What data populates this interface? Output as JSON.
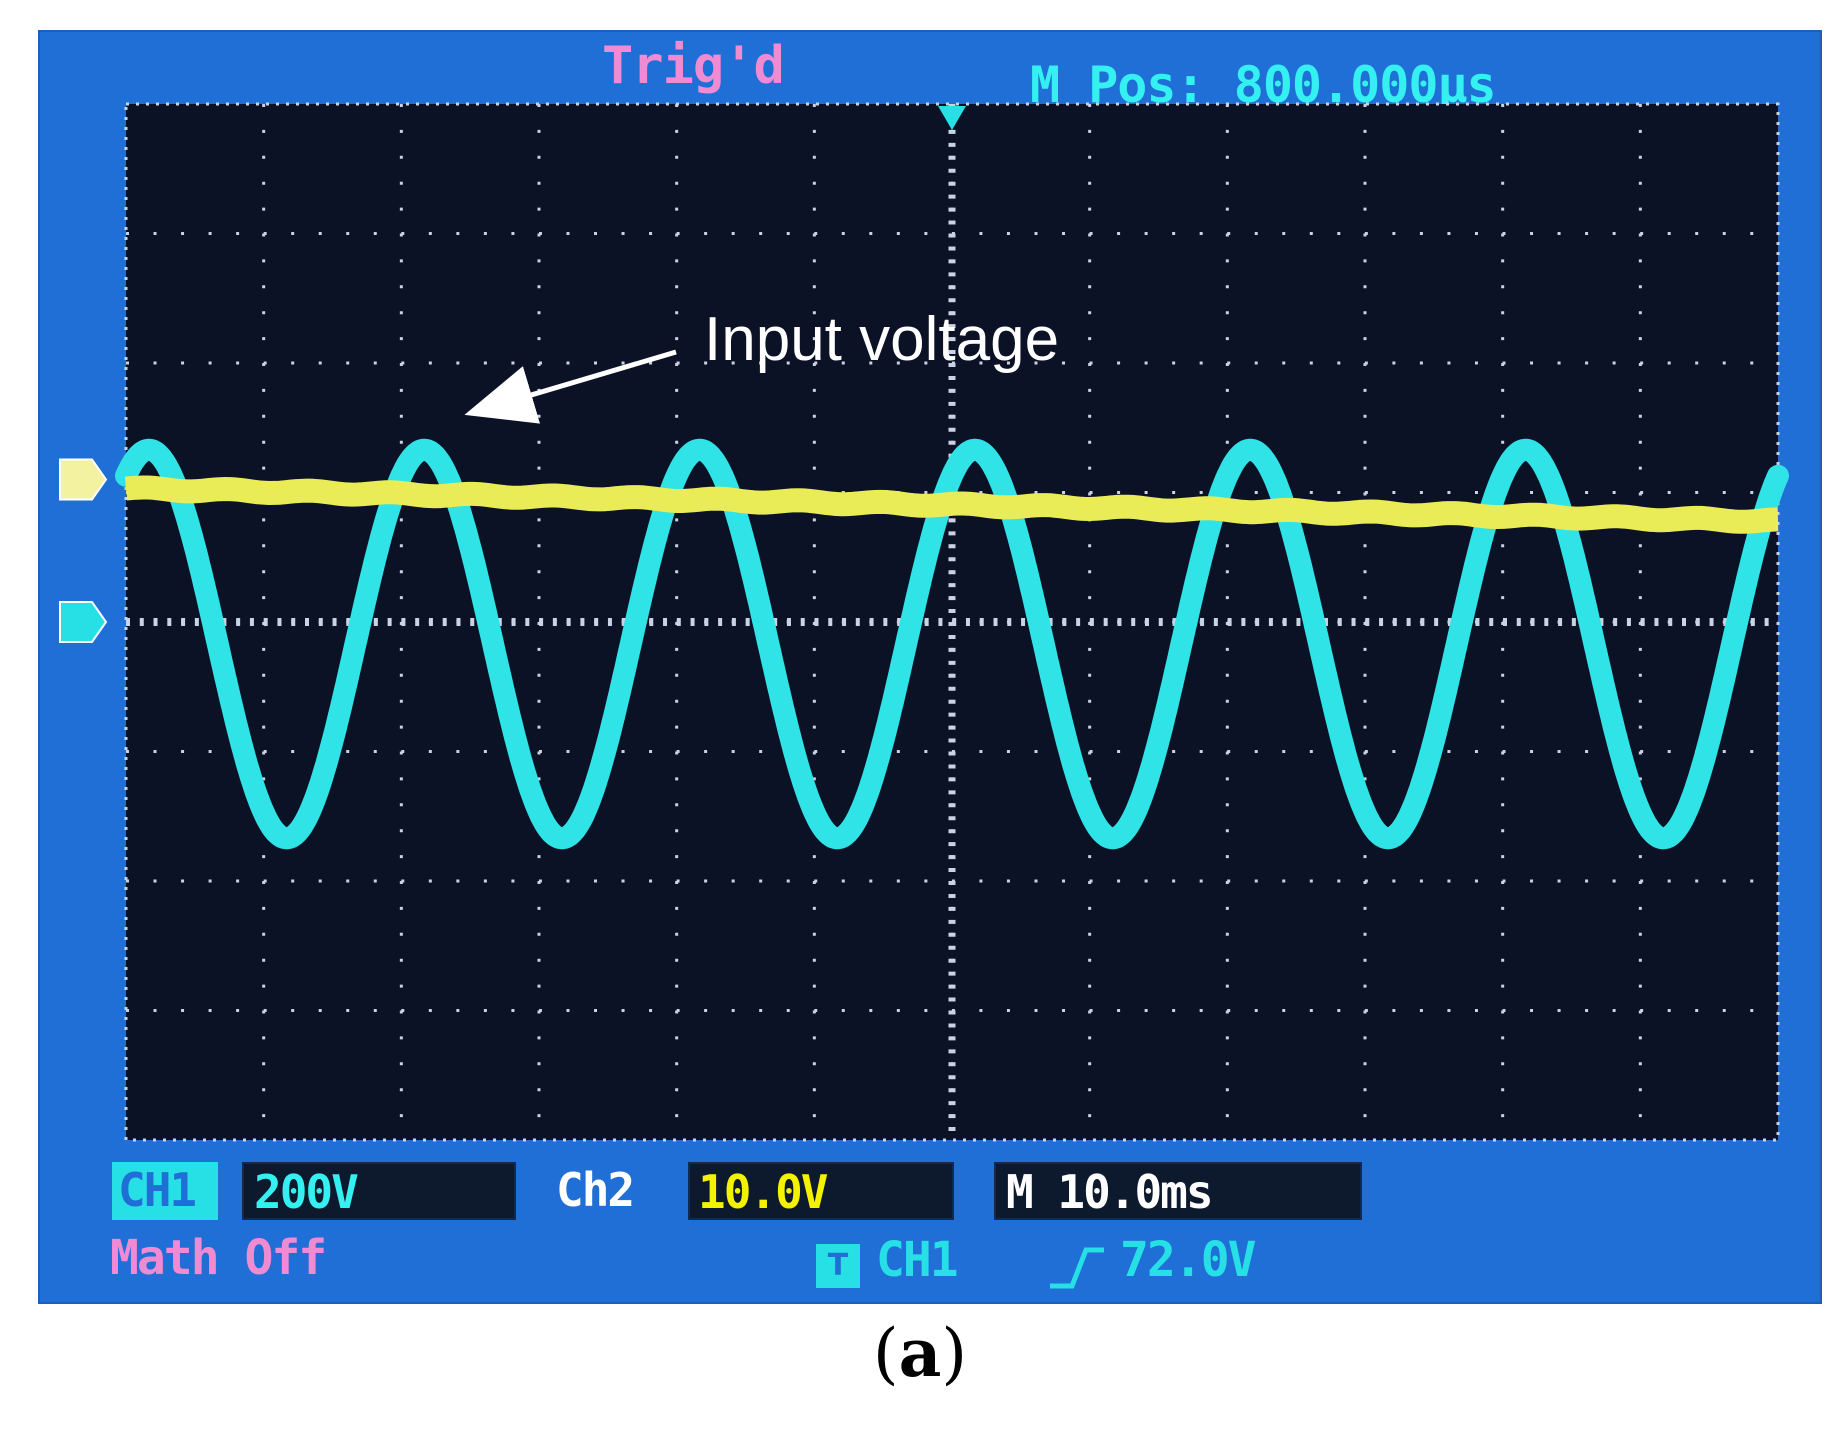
{
  "header": {
    "trigger_status": "Trig'd",
    "horizontal_position": "M Pos: 800.000μs"
  },
  "annotation": {
    "label": "Input voltage"
  },
  "channels": {
    "ch1": {
      "label": "CH1",
      "scale": "200V",
      "color": "#34f0f0"
    },
    "ch2": {
      "label": "Ch2",
      "scale": "10.0V",
      "color": "#f5f200"
    }
  },
  "timebase": {
    "scale": "M 10.0ms"
  },
  "math": {
    "status": "Math Off"
  },
  "trigger": {
    "icon": "T",
    "source": "CH1",
    "slope": "rising",
    "level": "72.0V"
  },
  "caption": {
    "open": "(",
    "letter": "a",
    "close": ")"
  },
  "colors": {
    "bezel": "#1f6fd6",
    "screen": "#0c1226",
    "grid": "#c8d4e4",
    "ch1_trace": "#2fe3e6",
    "ch2_trace": "#e9ec56",
    "label_pink": "#f08ad2"
  },
  "chart_data": {
    "type": "line",
    "grid_divisions": {
      "x": 12,
      "y": 8
    },
    "grid": true,
    "time_per_division_ms": 10,
    "series": [
      {
        "channel": "CH1",
        "waveform": "sine",
        "volts_per_division": 200,
        "cycles_on_screen": 6,
        "amplitude_div": 1.5,
        "offset_div": -0.17,
        "phase_at_left_edge_deg": 60,
        "ground_marker_div": 0.0
      },
      {
        "channel": "CH2",
        "waveform": "dc",
        "volts_per_division": 10,
        "level_left_div": 1.03,
        "level_right_div": 0.78,
        "ground_marker_div": 1.1
      }
    ],
    "annotation": {
      "text": "Input voltage",
      "points_to": "second CH1 peak"
    }
  }
}
